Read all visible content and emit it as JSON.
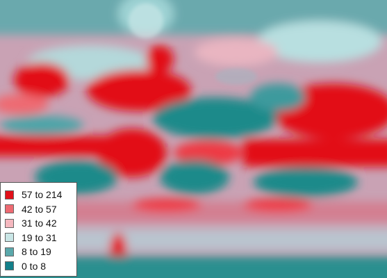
{
  "legend": {
    "items": [
      {
        "label": "57 to 214",
        "color": "#e21019"
      },
      {
        "label": "42 to 57",
        "color": "#ee6a72"
      },
      {
        "label": "31 to 42",
        "color": "#f5b8bf"
      },
      {
        "label": "19 to 31",
        "color": "#c9e6e6"
      },
      {
        "label": "8 to 19",
        "color": "#5aa8ab"
      },
      {
        "label": "0 to 8",
        "color": "#13808a"
      }
    ]
  }
}
